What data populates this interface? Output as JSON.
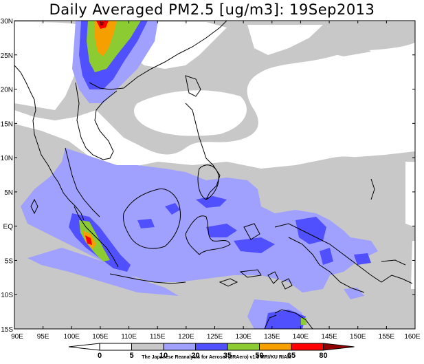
{
  "title": "Daily Averaged PM2.5 [ug/m3]: 19Sep2013",
  "lat_labels": [
    "30N",
    "25N",
    "20N",
    "15N",
    "10N",
    "5N",
    "EQ",
    "5S",
    "10S",
    "15S"
  ],
  "lon_labels": [
    "90E",
    "95E",
    "100E",
    "105E",
    "110E",
    "115E",
    "120E",
    "125E",
    "130E",
    "135E",
    "140E",
    "145E",
    "150E",
    "155E",
    "160E"
  ],
  "colorbar": {
    "ticks": [
      "0",
      "5",
      "10",
      "20",
      "35",
      "50",
      "65",
      "80"
    ],
    "colors": [
      "#ffffff",
      "#ffffff",
      "#c8c8c8",
      "#a0a0ff",
      "#5050ff",
      "#8ccc32",
      "#f5a000",
      "#ff0000",
      "#900000"
    ]
  },
  "credit": "The Japanese Reanalysis for Aerosol (JRAero) v1.0 MRI/KU RIAM"
}
